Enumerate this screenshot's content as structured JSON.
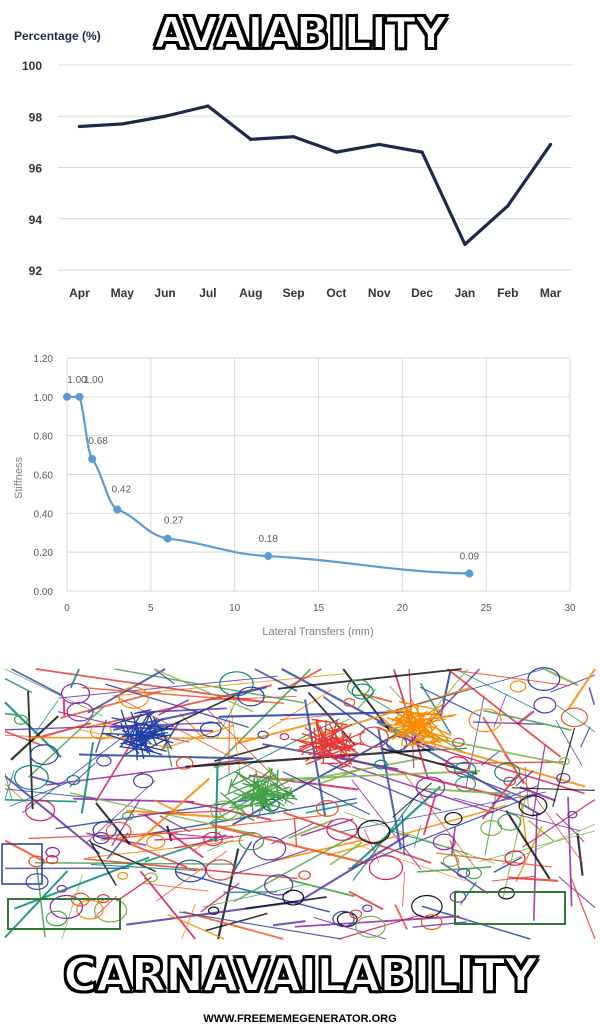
{
  "meme": {
    "top_text": "AVAIABILITY",
    "bottom_text": "CARNAVAILABILITY",
    "watermark": "WWW.FREEMEMEGENERATOR.ORG"
  },
  "chart_data": [
    {
      "type": "line",
      "ylabel": "Percentage (%)",
      "categories": [
        "Apr",
        "May",
        "Jun",
        "Jul",
        "Aug",
        "Sep",
        "Oct",
        "Nov",
        "Dec",
        "Jan",
        "Feb",
        "Mar"
      ],
      "series": [
        {
          "values": [
            97.6,
            97.7,
            98.0,
            98.4,
            97.1,
            97.2,
            96.6,
            96.9,
            96.6,
            93.0,
            94.5,
            96.9
          ]
        }
      ],
      "ylim": [
        92,
        100
      ],
      "yticks": [
        92,
        94,
        96,
        98,
        100
      ],
      "grid": true,
      "line_color": "#1b2a4a"
    },
    {
      "type": "line",
      "xlabel": "Lateral Transfers (mm)",
      "ylabel": "Stiffness",
      "x": [
        0,
        0.75,
        1.5,
        3,
        6,
        12,
        24
      ],
      "series": [
        {
          "values": [
            1.0,
            1.0,
            0.68,
            0.42,
            0.27,
            0.18,
            0.09
          ],
          "labels": [
            "1.00",
            "1.00",
            "0.68",
            "0.42",
            "0.27",
            "0.18",
            "0.09"
          ]
        }
      ],
      "xlim": [
        0,
        30
      ],
      "ylim": [
        0,
        1.2
      ],
      "xticks": [
        "0",
        "5",
        "10",
        "15",
        "20",
        "25",
        "30"
      ],
      "yticks": [
        "0.00",
        "0.20",
        "0.40",
        "0.60",
        "0.80",
        "1.00",
        "1.20"
      ],
      "grid": true,
      "line_color": "#5b9bd5"
    }
  ]
}
